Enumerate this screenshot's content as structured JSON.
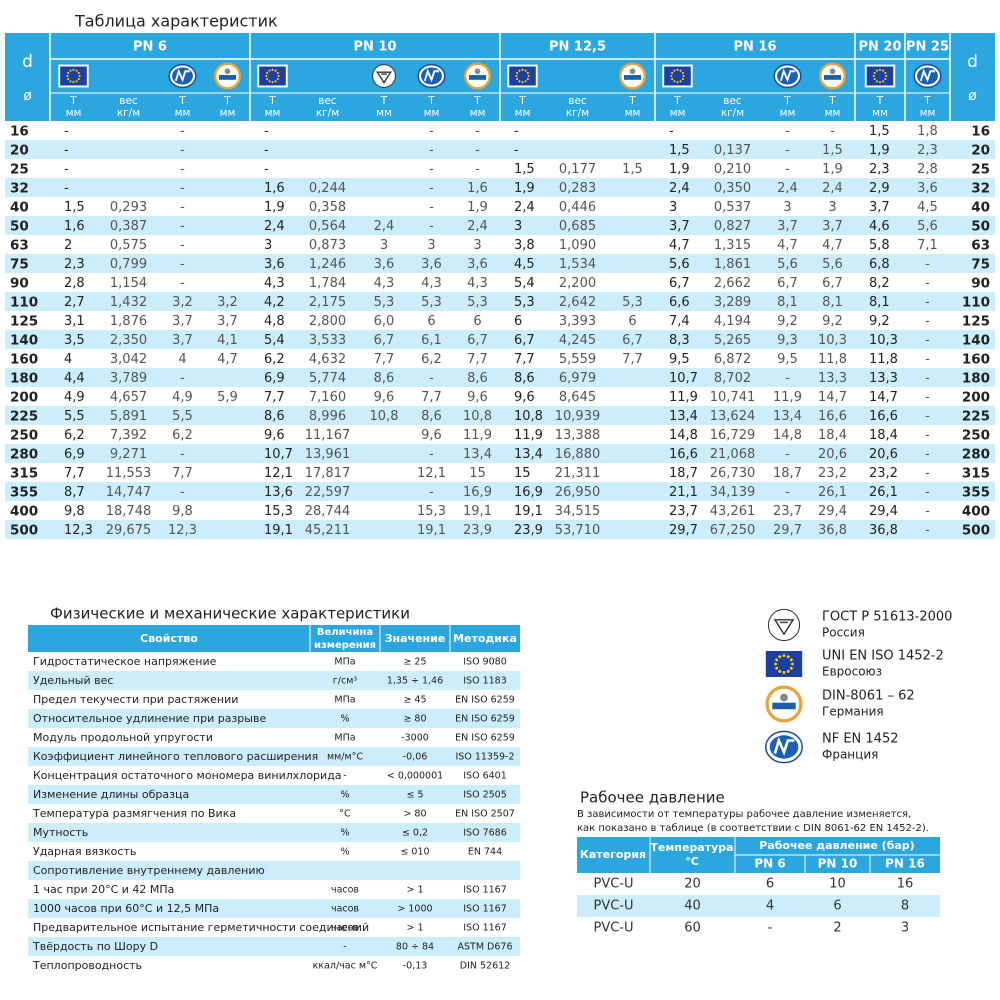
{
  "main_table": {
    "title": "Таблица характеристик",
    "d_header": [
      "d",
      "ø"
    ],
    "groups": [
      "PN 6",
      "PN 10",
      "PN 12,5",
      "PN 16",
      "PN 20",
      "PN 25"
    ],
    "column_headers": [
      [
        "Т",
        "мм"
      ],
      [
        "вес",
        "кг/м"
      ],
      [
        "Т",
        "мм"
      ],
      [
        "Т",
        "мм"
      ],
      [
        "Т",
        "мм"
      ],
      [
        "вес",
        "кг/м"
      ],
      [
        "Т",
        "мм"
      ],
      [
        "Т",
        "мм"
      ],
      [
        "Т",
        "мм"
      ],
      [
        "Т",
        "мм"
      ],
      [
        "вес",
        "кг/м"
      ],
      [
        "Т",
        "мм"
      ],
      [
        "Т",
        "мм"
      ],
      [
        "вес",
        "кг/м"
      ],
      [
        "Т",
        "мм"
      ],
      [
        "Т",
        "мм"
      ],
      [
        "Т",
        "мм"
      ],
      [
        "Т",
        "мм"
      ]
    ],
    "rows": [
      {
        "d": "16",
        "cells": [
          "-",
          null,
          "-",
          null,
          "-",
          null,
          null,
          "-",
          "-",
          "-",
          null,
          null,
          "-",
          null,
          "-",
          "-",
          "1,5",
          "1,8"
        ]
      },
      {
        "d": "20",
        "cells": [
          "-",
          null,
          "-",
          null,
          "-",
          null,
          null,
          "-",
          "-",
          "-",
          null,
          null,
          "1,5",
          "0,137",
          "-",
          "1,5",
          "1,9",
          "2,3"
        ]
      },
      {
        "d": "25",
        "cells": [
          "-",
          null,
          "-",
          null,
          "-",
          null,
          null,
          "-",
          "-",
          "1,5",
          "0,177",
          "1,5",
          "1,9",
          "0,210",
          "-",
          "1,9",
          "2,3",
          "2,8"
        ]
      },
      {
        "d": "32",
        "cells": [
          "-",
          null,
          "-",
          null,
          "1,6",
          "0,244",
          null,
          "-",
          "1,6",
          "1,9",
          "0,283",
          null,
          "2,4",
          "0,350",
          "2,4",
          "2,4",
          "2,9",
          "3,6"
        ]
      },
      {
        "d": "40",
        "cells": [
          "1,5",
          "0,293",
          "-",
          null,
          "1,9",
          "0,358",
          null,
          "-",
          "1,9",
          "2,4",
          "0,446",
          null,
          "3",
          "0,537",
          "3",
          "3",
          "3,7",
          "4,5"
        ]
      },
      {
        "d": "50",
        "cells": [
          "1,6",
          "0,387",
          "-",
          null,
          "2,4",
          "0,564",
          "2,4",
          "-",
          "2,4",
          "3",
          "0,685",
          null,
          "3,7",
          "0,827",
          "3,7",
          "3,7",
          "4,6",
          "5,6"
        ]
      },
      {
        "d": "63",
        "cells": [
          "2",
          "0,575",
          "-",
          null,
          "3",
          "0,873",
          "3",
          "3",
          "3",
          "3,8",
          "1,090",
          null,
          "4,7",
          "1,315",
          "4,7",
          "4,7",
          "5,8",
          "7,1"
        ]
      },
      {
        "d": "75",
        "cells": [
          "2,3",
          "0,799",
          "-",
          null,
          "3,6",
          "1,246",
          "3,6",
          "3,6",
          "3,6",
          "4,5",
          "1,534",
          null,
          "5,6",
          "1,861",
          "5,6",
          "5,6",
          "6,8",
          "-"
        ]
      },
      {
        "d": "90",
        "cells": [
          "2,8",
          "1,154",
          "-",
          null,
          "4,3",
          "1,784",
          "4,3",
          "4,3",
          "4,3",
          "5,4",
          "2,200",
          null,
          "6,7",
          "2,662",
          "6,7",
          "6,7",
          "8,2",
          "-"
        ]
      },
      {
        "d": "110",
        "cells": [
          "2,7",
          "1,432",
          "3,2",
          "3,2",
          "4,2",
          "2,175",
          "5,3",
          "5,3",
          "5,3",
          "5,3",
          "2,642",
          "5,3",
          "6,6",
          "3,289",
          "8,1",
          "8,1",
          "8,1",
          "-"
        ]
      },
      {
        "d": "125",
        "cells": [
          "3,1",
          "1,876",
          "3,7",
          "3,7",
          "4,8",
          "2,800",
          "6,0",
          "6",
          "6",
          "6",
          "3,393",
          "6",
          "7,4",
          "4,194",
          "9,2",
          "9,2",
          "9,2",
          "-"
        ]
      },
      {
        "d": "140",
        "cells": [
          "3,5",
          "2,350",
          "3,7",
          "4,1",
          "5,4",
          "3,533",
          "6,7",
          "6,1",
          "6,7",
          "6,7",
          "4,245",
          "6,7",
          "8,3",
          "5,265",
          "9,3",
          "10,3",
          "10,3",
          "-"
        ]
      },
      {
        "d": "160",
        "cells": [
          "4",
          "3,042",
          "4",
          "4,7",
          "6,2",
          "4,632",
          "7,7",
          "6,2",
          "7,7",
          "7,7",
          "5,559",
          "7,7",
          "9,5",
          "6,872",
          "9,5",
          "11,8",
          "11,8",
          "-"
        ]
      },
      {
        "d": "180",
        "cells": [
          "4,4",
          "3,789",
          "-",
          null,
          "6,9",
          "5,774",
          "8,6",
          "-",
          "8,6",
          "8,6",
          "6,979",
          null,
          "10,7",
          "8,702",
          "-",
          "13,3",
          "13,3",
          "-"
        ]
      },
      {
        "d": "200",
        "cells": [
          "4,9",
          "4,657",
          "4,9",
          "5,9",
          "7,7",
          "7,160",
          "9,6",
          "7,7",
          "9,6",
          "9,6",
          "8,645",
          null,
          "11,9",
          "10,741",
          "11,9",
          "14,7",
          "14,7",
          "-"
        ]
      },
      {
        "d": "225",
        "cells": [
          "5,5",
          "5,891",
          "5,5",
          null,
          "8,6",
          "8,996",
          "10,8",
          "8,6",
          "10,8",
          "10,8",
          "10,939",
          null,
          "13,4",
          "13,624",
          "13,4",
          "16,6",
          "16,6",
          "-"
        ]
      },
      {
        "d": "250",
        "cells": [
          "6,2",
          "7,392",
          "6,2",
          null,
          "9,6",
          "11,167",
          null,
          "9,6",
          "11,9",
          "11,9",
          "13,388",
          null,
          "14,8",
          "16,729",
          "14,8",
          "18,4",
          "18,4",
          "-"
        ]
      },
      {
        "d": "280",
        "cells": [
          "6,9",
          "9,271",
          "-",
          null,
          "10,7",
          "13,961",
          null,
          "-",
          "13,4",
          "13,4",
          "16,880",
          null,
          "16,6",
          "21,068",
          "-",
          "20,6",
          "20,6",
          "-"
        ]
      },
      {
        "d": "315",
        "cells": [
          "7,7",
          "11,553",
          "7,7",
          null,
          "12,1",
          "17,817",
          null,
          "12,1",
          "15",
          "15",
          "21,311",
          null,
          "18,7",
          "26,730",
          "18,7",
          "23,2",
          "23,2",
          "-"
        ]
      },
      {
        "d": "355",
        "cells": [
          "8,7",
          "14,747",
          "-",
          null,
          "13,6",
          "22,597",
          null,
          "-",
          "16,9",
          "16,9",
          "26,950",
          null,
          "21,1",
          "34,139",
          "-",
          "26,1",
          "26,1",
          "-"
        ]
      },
      {
        "d": "400",
        "cells": [
          "9,8",
          "18,748",
          "9,8",
          null,
          "15,3",
          "28,744",
          null,
          "15,3",
          "19,1",
          "19,1",
          "34,515",
          null,
          "23,7",
          "43,261",
          "23,7",
          "29,4",
          "29,4",
          "-"
        ]
      },
      {
        "d": "500",
        "cells": [
          "12,3",
          "29,675",
          "12,3",
          null,
          "19,1",
          "45,211",
          null,
          "19,1",
          "23,9",
          "23,9",
          "53,710",
          null,
          "29,7",
          "67,250",
          "29,7",
          "36,8",
          "36,8",
          "-"
        ]
      }
    ]
  },
  "physical_table": {
    "title": "Физические и механические характеристики",
    "headers": [
      [
        "Свойство"
      ],
      [
        "Величина",
        "измерения"
      ],
      [
        "Значение"
      ],
      [
        "Методика"
      ]
    ],
    "rows": [
      [
        "Гидростатическое напряжение",
        "МПа",
        "≥ 25",
        "ISO 9080"
      ],
      [
        "Удельный вес",
        "г/см³",
        "1,35 ÷ 1,46",
        "ISO 1183"
      ],
      [
        "Предел текучести при растяжении",
        "МПа",
        "≥ 45",
        "EN ISO 6259"
      ],
      [
        "Относительное удлинение при разрыве",
        "%",
        "≥ 80",
        "EN ISO 6259"
      ],
      [
        "Модуль продольной упругости",
        "МПа",
        "-3000",
        "EN ISO 6259"
      ],
      [
        "Коэффициент линейного теплового расширения",
        "мм/м°С",
        "-0,06",
        "ISO 11359-2"
      ],
      [
        "Концентрация остаточного мономера винилхлорида",
        "-",
        "< 0,000001",
        "ISO 6401"
      ],
      [
        "Изменение длины образца",
        "%",
        "≤ 5",
        "ISO 2505"
      ],
      [
        "Температура размягчения по Вика",
        "°С",
        "> 80",
        "EN ISO 2507"
      ],
      [
        "Мутность",
        "%",
        "≤ 0,2",
        "ISO 7686"
      ],
      [
        "Ударная вязкость",
        "%",
        "≤ 010",
        "EN 744"
      ],
      [
        "Сопротивление внутреннему давлению",
        null,
        null,
        null
      ],
      [
        "1 час при 20°С и 42 МПа",
        "часов",
        "> 1",
        "ISO 1167"
      ],
      [
        "1000 часов при 60°С и 12,5 МПа",
        "часов",
        "> 1000",
        "ISO 1167"
      ],
      [
        "Предварительное испытание герметичности соединений",
        "часов",
        "> 1",
        "ISO 1167"
      ],
      [
        "Твёрдость по Шору D",
        "-",
        "80 ÷ 84",
        "ASTM D676"
      ],
      [
        "Теплопроводность",
        "ккал/час м°С",
        "-0,13",
        "DIN 52612"
      ]
    ]
  },
  "standards": [
    {
      "name": "ГОСТ Р 51613-2000",
      "region": "Россия"
    },
    {
      "name": "UNI EN ISO 1452-2",
      "region": "Евросоюз"
    },
    {
      "name": "DIN-8061 – 62",
      "region": "Германия"
    },
    {
      "name": "NF EN 1452",
      "region": "Франция"
    }
  ],
  "pressure_table": {
    "title": "Рабочее давление",
    "note": [
      "В зависимости от температуры рабочее давление изменяется,",
      "как показано в таблице (в соответствии с DIN 8061-62 EN 1452-2)."
    ],
    "headers": {
      "category": "Категория",
      "temperature": [
        "Температура",
        "°С"
      ],
      "pressure": "Рабочее давление (бар)",
      "pn": [
        "PN 6",
        "PN 10",
        "PN 16"
      ]
    },
    "rows": [
      [
        "PVC-U",
        "20",
        "6",
        "10",
        "16"
      ],
      [
        "PVC-U",
        "40",
        "4",
        "6",
        "8"
      ],
      [
        "PVC-U",
        "60",
        "-",
        "2",
        "3"
      ]
    ]
  }
}
